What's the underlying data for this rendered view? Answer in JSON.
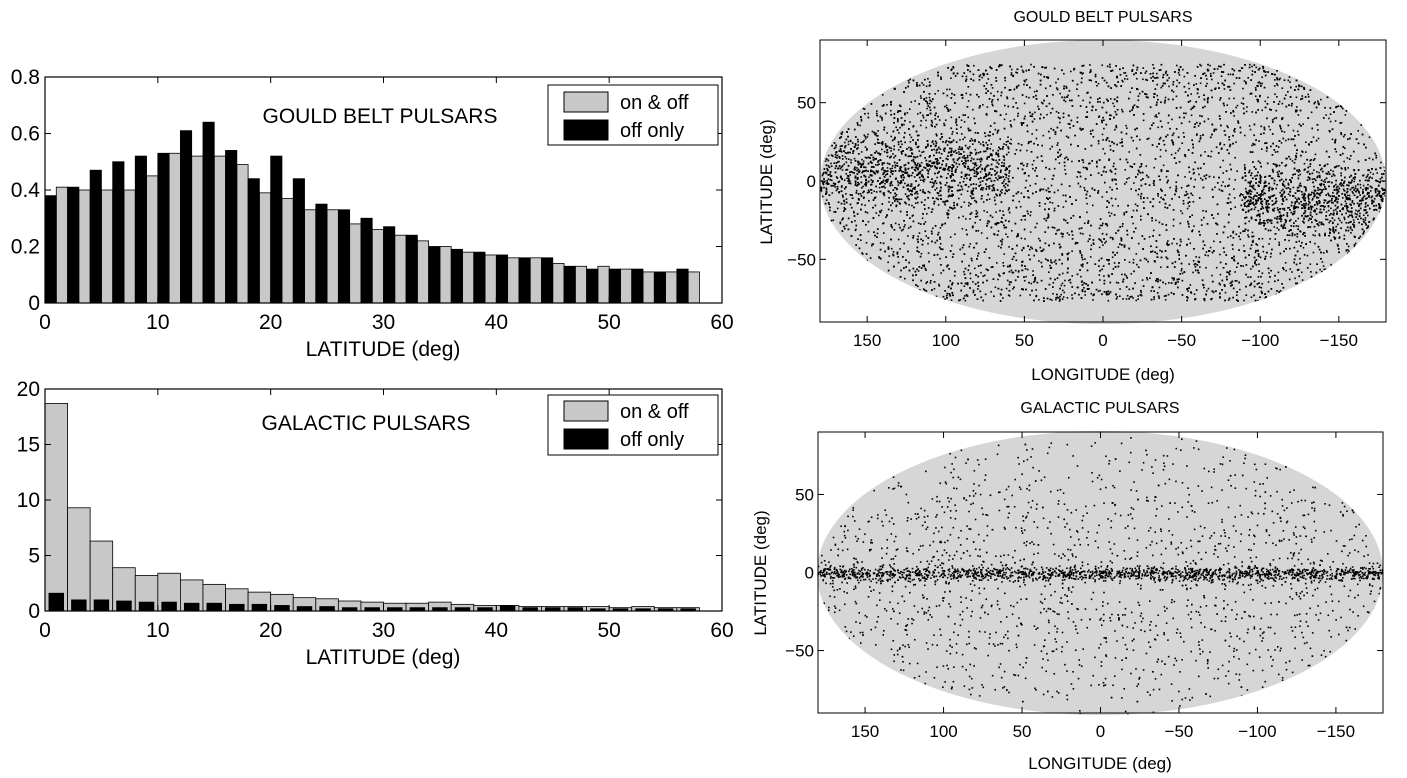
{
  "chart_data": [
    {
      "type": "bar",
      "title": "GOULD BELT PULSARS",
      "xlabel": "LATITUDE (deg)",
      "ylabel": "",
      "xlim": [
        0,
        60
      ],
      "ylim": [
        0,
        0.8
      ],
      "xticks": [
        "0",
        "10",
        "20",
        "30",
        "40",
        "50",
        "60"
      ],
      "yticks": [
        "0",
        "0.2",
        "0.4",
        "0.6",
        "0.8"
      ],
      "legend_position": "top-right",
      "bin_width": 2,
      "series": [
        {
          "name": "on & off",
          "color": "#c8c8c8",
          "values": [
            0.41,
            0.4,
            0.4,
            0.4,
            0.45,
            0.53,
            0.52,
            0.52,
            0.49,
            0.39,
            0.37,
            0.33,
            0.33,
            0.28,
            0.26,
            0.24,
            0.22,
            0.2,
            0.18,
            0.17,
            0.16,
            0.16,
            0.14,
            0.13,
            0.13,
            0.12,
            0.11,
            0.11,
            0.11
          ]
        },
        {
          "name": "off only",
          "color": "#000000",
          "values": [
            0.38,
            0.41,
            0.47,
            0.5,
            0.52,
            0.53,
            0.61,
            0.64,
            0.54,
            0.44,
            0.52,
            0.44,
            0.35,
            0.33,
            0.3,
            0.27,
            0.24,
            0.2,
            0.19,
            0.18,
            0.17,
            0.16,
            0.16,
            0.13,
            0.12,
            0.12,
            0.12,
            0.11,
            0.12
          ]
        }
      ]
    },
    {
      "type": "bar",
      "title": "GALACTIC PULSARS",
      "xlabel": "LATITUDE (deg)",
      "ylabel": "",
      "xlim": [
        0,
        60
      ],
      "ylim": [
        0,
        20
      ],
      "xticks": [
        "0",
        "10",
        "20",
        "30",
        "40",
        "50",
        "60"
      ],
      "yticks": [
        "0",
        "5",
        "10",
        "15",
        "20"
      ],
      "legend_position": "top-right",
      "bin_width": 2,
      "series": [
        {
          "name": "on & off",
          "color": "#c8c8c8",
          "values": [
            18.7,
            9.3,
            6.3,
            3.9,
            3.2,
            3.4,
            2.8,
            2.4,
            2.0,
            1.7,
            1.5,
            1.2,
            1.1,
            0.9,
            0.8,
            0.7,
            0.7,
            0.8,
            0.6,
            0.5,
            0.5,
            0.4,
            0.4,
            0.4,
            0.4,
            0.3,
            0.4,
            0.3,
            0.3
          ]
        },
        {
          "name": "off only",
          "color": "#000000",
          "values": [
            1.6,
            1.0,
            1.0,
            0.9,
            0.8,
            0.8,
            0.7,
            0.7,
            0.6,
            0.6,
            0.5,
            0.4,
            0.4,
            0.3,
            0.3,
            0.3,
            0.3,
            0.3,
            0.3,
            0.3,
            0.5,
            0.3,
            0.3,
            0.3,
            0.2,
            0.2,
            0.2,
            0.2,
            0.2
          ]
        }
      ]
    },
    {
      "type": "scatter",
      "title": "GOULD BELT PULSARS",
      "xlabel": "LONGITUDE (deg)",
      "ylabel": "LATITUDE (deg)",
      "projection": "elliptical all-sky",
      "xlim": [
        180,
        -180
      ],
      "ylim": [
        -90,
        90
      ],
      "xticks": [
        "150",
        "100",
        "50",
        "0",
        "−50",
        "−100",
        "−150"
      ],
      "yticks": [
        "50",
        "0",
        "−50"
      ],
      "point_count": 9000,
      "concentrations": [
        {
          "description": "dense band",
          "longitude_range": [
            60,
            180
          ],
          "latitude_range": [
            0,
            50
          ]
        },
        {
          "description": "dense band",
          "longitude_range": [
            -180,
            -90
          ],
          "latitude_range": [
            -50,
            0
          ]
        }
      ],
      "latitude_coverage": [
        -75,
        75
      ]
    },
    {
      "type": "scatter",
      "title": "GALACTIC PULSARS",
      "xlabel": "LONGITUDE (deg)",
      "ylabel": "LATITUDE (deg)",
      "projection": "elliptical all-sky",
      "xlim": [
        180,
        -180
      ],
      "ylim": [
        -90,
        90
      ],
      "xticks": [
        "150",
        "100",
        "50",
        "0",
        "−50",
        "−100",
        "−150"
      ],
      "yticks": [
        "50",
        "0",
        "−50"
      ],
      "point_count": 3200,
      "concentrations": [
        {
          "description": "dense band",
          "longitude_range": [
            -180,
            180
          ],
          "latitude_range": [
            -3,
            3
          ]
        }
      ]
    }
  ]
}
